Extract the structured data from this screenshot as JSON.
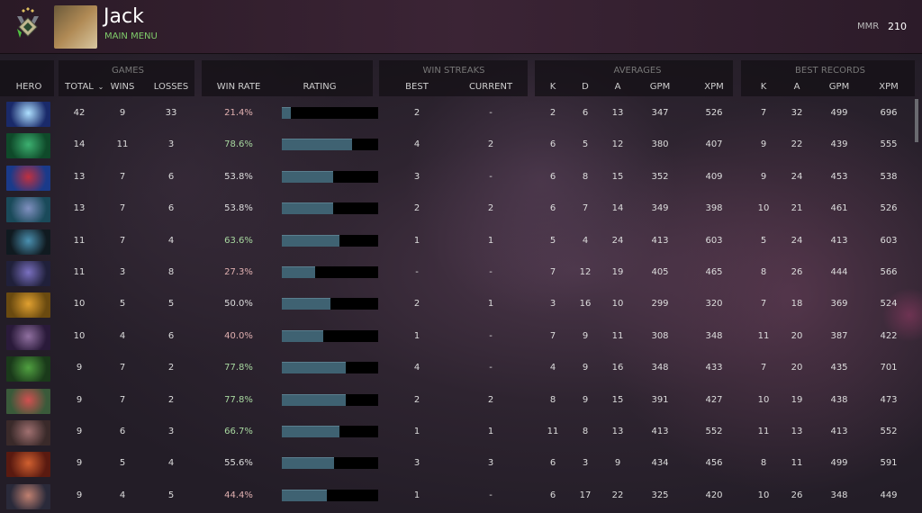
{
  "header": {
    "player_name": "Jack",
    "subtitle": "MAIN MENU",
    "mmr_label": "MMR",
    "mmr_value": "210",
    "rank_icon": "rank-medal-icon"
  },
  "table": {
    "groups": {
      "games": "GAMES",
      "win_streaks": "WIN STREAKS",
      "averages": "AVERAGES",
      "best_records": "BEST RECORDS"
    },
    "columns": {
      "hero": "HERO",
      "total": "TOTAL",
      "wins": "WINS",
      "losses": "LOSSES",
      "win_rate": "WIN RATE",
      "rating": "RATING",
      "best": "BEST",
      "current": "CURRENT",
      "k": "K",
      "d": "D",
      "a": "A",
      "gpm": "GPM",
      "xpm": "XPM",
      "br_k": "K",
      "br_a": "A",
      "br_gpm": "GPM",
      "br_xpm": "XPM"
    },
    "sort_column": "TOTAL",
    "rows": [
      {
        "hero_colors": [
          "#1a2a6a",
          "#aee0ff"
        ],
        "total": "42",
        "wins": "9",
        "losses": "33",
        "win_rate": "21.4%",
        "rating": 0.09,
        "best": "2",
        "current": "-",
        "k": "2",
        "d": "6",
        "a": "13",
        "gpm": "347",
        "xpm": "526",
        "br_k": "7",
        "br_a": "32",
        "br_gpm": "499",
        "br_xpm": "696"
      },
      {
        "hero_colors": [
          "#0f4a2a",
          "#3cb070"
        ],
        "total": "14",
        "wins": "11",
        "losses": "3",
        "win_rate": "78.6%",
        "rating": 0.73,
        "best": "4",
        "current": "2",
        "k": "6",
        "d": "5",
        "a": "12",
        "gpm": "380",
        "xpm": "407",
        "br_k": "9",
        "br_a": "22",
        "br_gpm": "439",
        "br_xpm": "555"
      },
      {
        "hero_colors": [
          "#1a3a8a",
          "#c03040"
        ],
        "total": "13",
        "wins": "7",
        "losses": "6",
        "win_rate": "53.8%",
        "rating": 0.53,
        "best": "3",
        "current": "-",
        "k": "6",
        "d": "8",
        "a": "15",
        "gpm": "352",
        "xpm": "409",
        "br_k": "9",
        "br_a": "24",
        "br_gpm": "453",
        "br_xpm": "538"
      },
      {
        "hero_colors": [
          "#1a4a5a",
          "#8090c0"
        ],
        "total": "13",
        "wins": "7",
        "losses": "6",
        "win_rate": "53.8%",
        "rating": 0.53,
        "best": "2",
        "current": "2",
        "k": "6",
        "d": "7",
        "a": "14",
        "gpm": "349",
        "xpm": "398",
        "br_k": "10",
        "br_a": "21",
        "br_gpm": "461",
        "br_xpm": "526"
      },
      {
        "hero_colors": [
          "#101a20",
          "#4a90b0"
        ],
        "total": "11",
        "wins": "7",
        "losses": "4",
        "win_rate": "63.6%",
        "rating": 0.6,
        "best": "1",
        "current": "1",
        "k": "5",
        "d": "4",
        "a": "24",
        "gpm": "413",
        "xpm": "603",
        "br_k": "5",
        "br_a": "24",
        "br_gpm": "413",
        "br_xpm": "603"
      },
      {
        "hero_colors": [
          "#20203a",
          "#7a70c0"
        ],
        "total": "11",
        "wins": "3",
        "losses": "8",
        "win_rate": "27.3%",
        "rating": 0.35,
        "best": "-",
        "current": "-",
        "k": "7",
        "d": "12",
        "a": "19",
        "gpm": "405",
        "xpm": "465",
        "br_k": "8",
        "br_a": "26",
        "br_gpm": "444",
        "br_xpm": "566"
      },
      {
        "hero_colors": [
          "#6a4a10",
          "#e0a030"
        ],
        "total": "10",
        "wins": "5",
        "losses": "5",
        "win_rate": "50.0%",
        "rating": 0.5,
        "best": "2",
        "current": "1",
        "k": "3",
        "d": "16",
        "a": "10",
        "gpm": "299",
        "xpm": "320",
        "br_k": "7",
        "br_a": "18",
        "br_gpm": "369",
        "br_xpm": "524"
      },
      {
        "hero_colors": [
          "#2a1a3a",
          "#9070a0"
        ],
        "total": "10",
        "wins": "4",
        "losses": "6",
        "win_rate": "40.0%",
        "rating": 0.43,
        "best": "1",
        "current": "-",
        "k": "7",
        "d": "9",
        "a": "11",
        "gpm": "308",
        "xpm": "348",
        "br_k": "11",
        "br_a": "20",
        "br_gpm": "387",
        "br_xpm": "422"
      },
      {
        "hero_colors": [
          "#1a3a1a",
          "#50a040"
        ],
        "total": "9",
        "wins": "7",
        "losses": "2",
        "win_rate": "77.8%",
        "rating": 0.66,
        "best": "4",
        "current": "-",
        "k": "4",
        "d": "9",
        "a": "16",
        "gpm": "348",
        "xpm": "433",
        "br_k": "7",
        "br_a": "20",
        "br_gpm": "435",
        "br_xpm": "701"
      },
      {
        "hero_colors": [
          "#3a5a3a",
          "#d05050"
        ],
        "total": "9",
        "wins": "7",
        "losses": "2",
        "win_rate": "77.8%",
        "rating": 0.66,
        "best": "2",
        "current": "2",
        "k": "8",
        "d": "9",
        "a": "15",
        "gpm": "391",
        "xpm": "427",
        "br_k": "10",
        "br_a": "19",
        "br_gpm": "438",
        "br_xpm": "473"
      },
      {
        "hero_colors": [
          "#3a2a2a",
          "#a07070"
        ],
        "total": "9",
        "wins": "6",
        "losses": "3",
        "win_rate": "66.7%",
        "rating": 0.6,
        "best": "1",
        "current": "1",
        "k": "11",
        "d": "8",
        "a": "13",
        "gpm": "413",
        "xpm": "552",
        "br_k": "11",
        "br_a": "13",
        "br_gpm": "413",
        "br_xpm": "552"
      },
      {
        "hero_colors": [
          "#5a1a10",
          "#d06030"
        ],
        "total": "9",
        "wins": "5",
        "losses": "4",
        "win_rate": "55.6%",
        "rating": 0.54,
        "best": "3",
        "current": "3",
        "k": "6",
        "d": "3",
        "a": "9",
        "gpm": "434",
        "xpm": "456",
        "br_k": "8",
        "br_a": "11",
        "br_gpm": "499",
        "br_xpm": "591"
      },
      {
        "hero_colors": [
          "#2a2a3a",
          "#c08070"
        ],
        "total": "9",
        "wins": "4",
        "losses": "5",
        "win_rate": "44.4%",
        "rating": 0.47,
        "best": "1",
        "current": "-",
        "k": "6",
        "d": "17",
        "a": "22",
        "gpm": "325",
        "xpm": "420",
        "br_k": "10",
        "br_a": "26",
        "br_gpm": "348",
        "br_xpm": "449"
      }
    ]
  },
  "colors": {
    "win_high": "#a8d8a0",
    "win_low": "#e0b0b0",
    "win_mid": "#dddddd",
    "bar_fill": "#3f6272",
    "accent_green": "#7fcc6a"
  }
}
